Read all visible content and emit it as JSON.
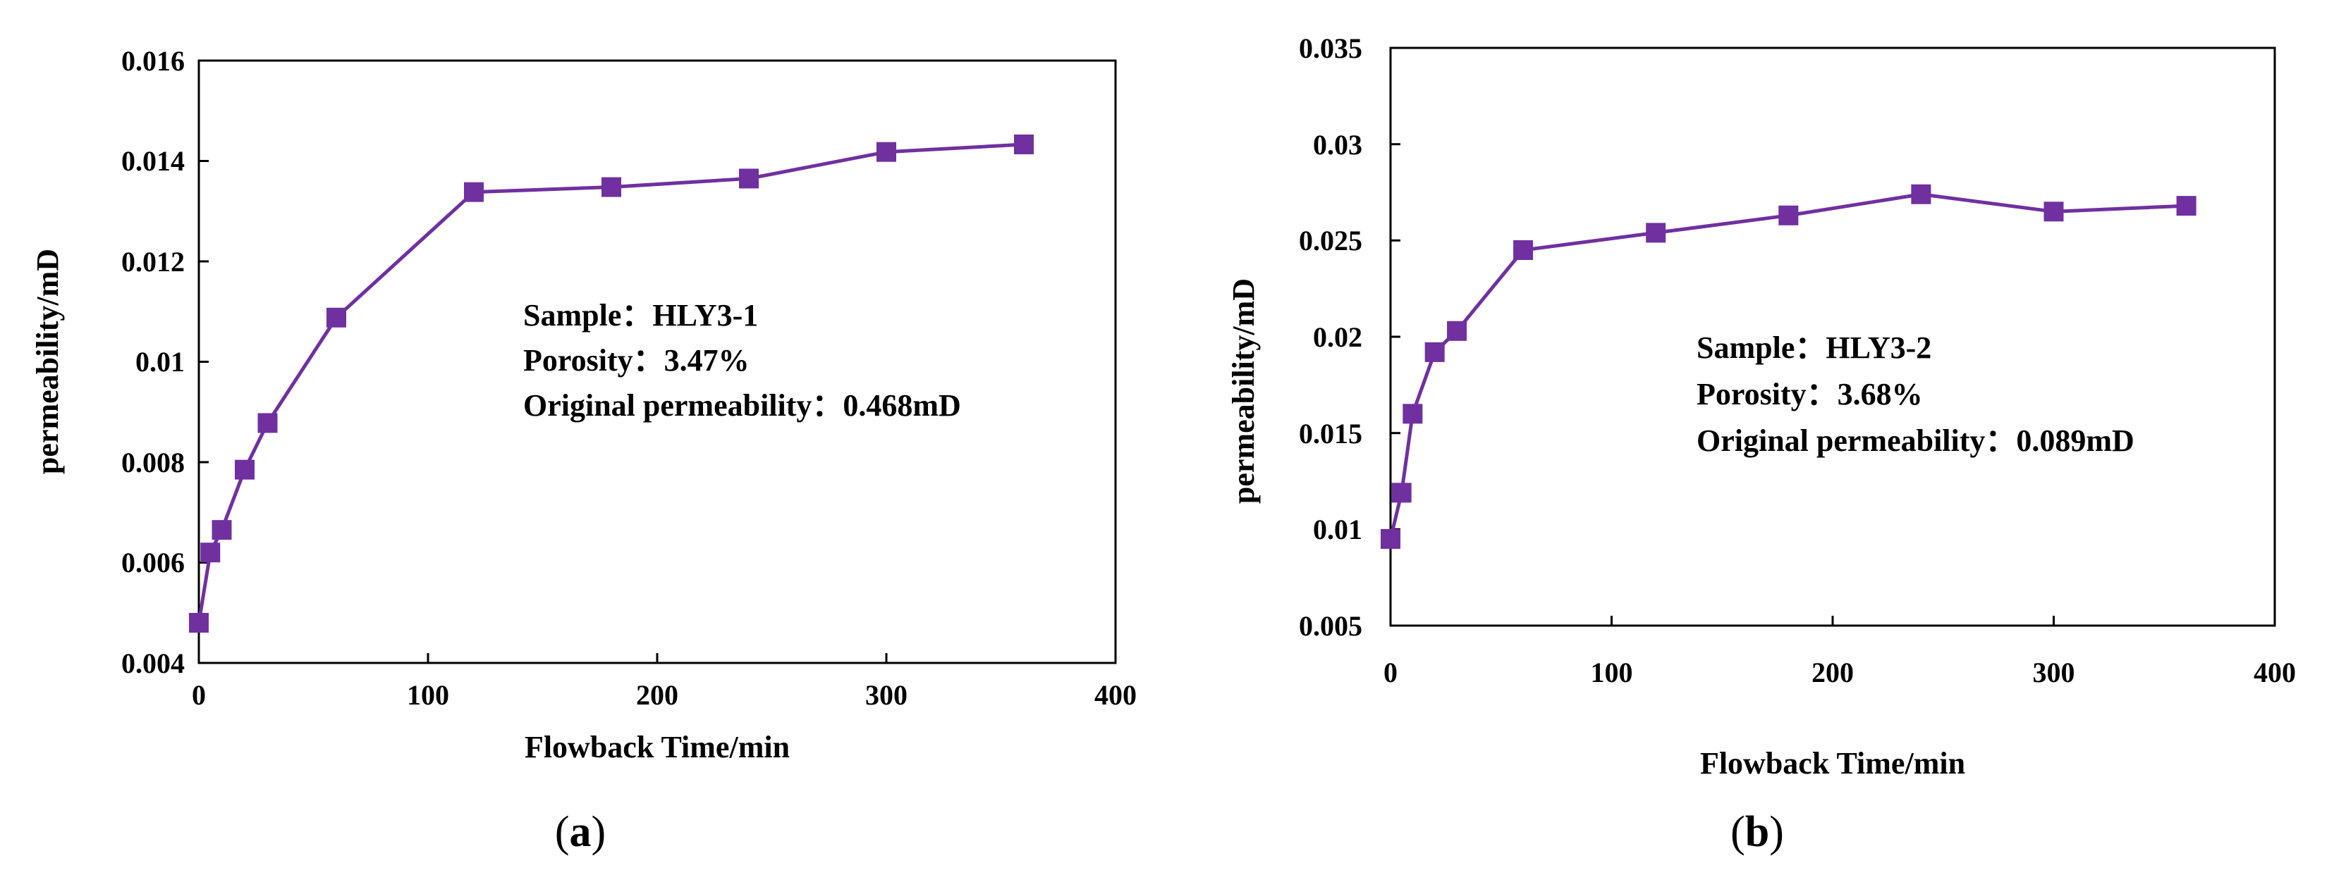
{
  "chart_data": [
    {
      "type": "line",
      "panel_label": "a",
      "xlabel": "Flowback Time/min",
      "ylabel": "permeability/mD",
      "xlim": [
        0,
        400
      ],
      "ylim": [
        0.004,
        0.016
      ],
      "xticks": [
        "0",
        "100",
        "200",
        "300",
        "400"
      ],
      "yticks": [
        "0.004",
        "0.006",
        "0.008",
        "0.01",
        "0.012",
        "0.014",
        "0.016"
      ],
      "grid": false,
      "series": [
        {
          "name": "HLY3-1",
          "color": "#7030A0",
          "marker": "square",
          "x": [
            0,
            5,
            10,
            20,
            30,
            60,
            120,
            180,
            240,
            300,
            360
          ],
          "values": [
            0.0048,
            0.0062,
            0.00665,
            0.00785,
            0.00878,
            0.01088,
            0.01338,
            0.01348,
            0.01365,
            0.01418,
            0.01433
          ]
        }
      ],
      "annotations": [
        "Sample：HLY3-1",
        "Porosity：3.47%",
        "Original permeability：0.468mD"
      ]
    },
    {
      "type": "line",
      "panel_label": "b",
      "xlabel": "Flowback Time/min",
      "ylabel": "permeability/mD",
      "xlim": [
        0,
        400
      ],
      "ylim": [
        0.005,
        0.035
      ],
      "xticks": [
        "0",
        "100",
        "200",
        "300",
        "400"
      ],
      "yticks": [
        "0.005",
        "0.01",
        "0.015",
        "0.02",
        "0.025",
        "0.03",
        "0.035"
      ],
      "grid": false,
      "series": [
        {
          "name": "HLY3-2",
          "color": "#7030A0",
          "marker": "square",
          "x": [
            0,
            5,
            10,
            20,
            30,
            60,
            120,
            180,
            240,
            300,
            360
          ],
          "values": [
            0.0095,
            0.0119,
            0.016,
            0.0192,
            0.0203,
            0.0245,
            0.0254,
            0.0263,
            0.0274,
            0.0265,
            0.0268
          ]
        }
      ],
      "annotations": [
        "Sample：HLY3-2",
        "Porosity：3.68%",
        "Original permeability：0.089mD"
      ]
    }
  ]
}
